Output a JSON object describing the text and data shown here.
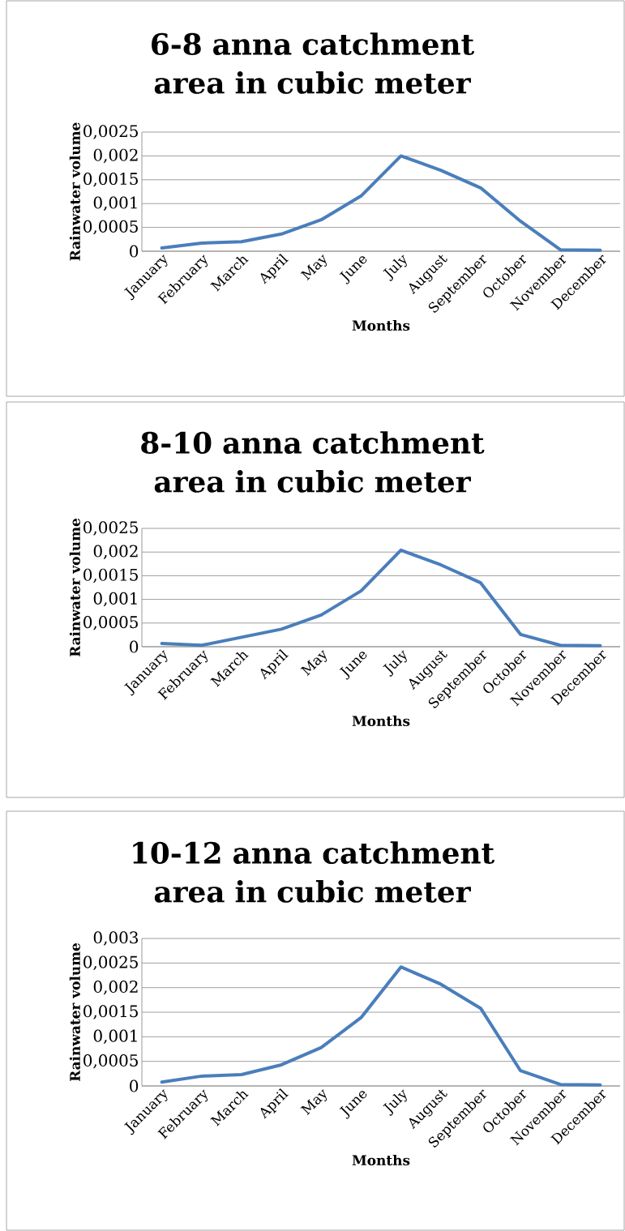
{
  "chart_data": [
    {
      "type": "line",
      "title": "6-8 anna catchment area in cubic meter",
      "xlabel": "Months",
      "ylabel": "Rainwater volume",
      "categories": [
        "January",
        "February",
        "March",
        "April",
        "May",
        "June",
        "July",
        "August",
        "September",
        "October",
        "November",
        "December"
      ],
      "series": [
        {
          "color": "#4a7ebb",
          "values": [
            7e-05,
            0.00017,
            0.0002,
            0.00036,
            0.00066,
            0.00116,
            0.002,
            0.0017,
            0.00133,
            0.00063,
            3e-05,
            2e-05
          ]
        }
      ],
      "ylim": [
        0,
        0.0025
      ],
      "yticks": [
        {
          "value": 0,
          "label": "0"
        },
        {
          "value": 0.0005,
          "label": "0,0005"
        },
        {
          "value": 0.001,
          "label": "0,001"
        },
        {
          "value": 0.0015,
          "label": "0,0015"
        },
        {
          "value": 0.002,
          "label": "0,002"
        },
        {
          "value": 0.0025,
          "label": "0,0025"
        }
      ],
      "grid": "y"
    },
    {
      "type": "line",
      "title": "8-10 anna catchment area in cubic meter",
      "xlabel": "Months",
      "ylabel": "Rainwater volume",
      "categories": [
        "January",
        "February",
        "March",
        "April",
        "May",
        "June",
        "July",
        "August",
        "September",
        "October",
        "November",
        "December"
      ],
      "series": [
        {
          "color": "#4a7ebb",
          "values": [
            7e-05,
            3e-05,
            0.0002,
            0.00037,
            0.00067,
            0.00118,
            0.00204,
            0.00173,
            0.00135,
            0.00026,
            3e-05,
            2e-05
          ]
        }
      ],
      "ylim": [
        0,
        0.0025
      ],
      "yticks": [
        {
          "value": 0,
          "label": "0"
        },
        {
          "value": 0.0005,
          "label": "0,0005"
        },
        {
          "value": 0.001,
          "label": "0,001"
        },
        {
          "value": 0.0015,
          "label": "0,0015"
        },
        {
          "value": 0.002,
          "label": "0,002"
        },
        {
          "value": 0.0025,
          "label": "0,0025"
        }
      ],
      "grid": "y"
    },
    {
      "type": "line",
      "title": "10-12 anna catchment area in cubic meter",
      "xlabel": "Months",
      "ylabel": "Rainwater volume",
      "categories": [
        "January",
        "February",
        "March",
        "April",
        "May",
        "June",
        "July",
        "August",
        "September",
        "October",
        "November",
        "December"
      ],
      "series": [
        {
          "color": "#4a7ebb",
          "values": [
            8e-05,
            0.0002,
            0.00023,
            0.00043,
            0.00078,
            0.00139,
            0.00242,
            0.00207,
            0.00158,
            0.00031,
            3e-05,
            2e-05
          ]
        }
      ],
      "ylim": [
        0,
        0.003
      ],
      "yticks": [
        {
          "value": 0,
          "label": "0"
        },
        {
          "value": 0.0005,
          "label": "0,0005"
        },
        {
          "value": 0.001,
          "label": "0,001"
        },
        {
          "value": 0.0015,
          "label": "0,0015"
        },
        {
          "value": 0.002,
          "label": "0,002"
        },
        {
          "value": 0.0025,
          "label": "0,0025"
        },
        {
          "value": 0.003,
          "label": "0,003"
        }
      ],
      "grid": "y"
    }
  ]
}
